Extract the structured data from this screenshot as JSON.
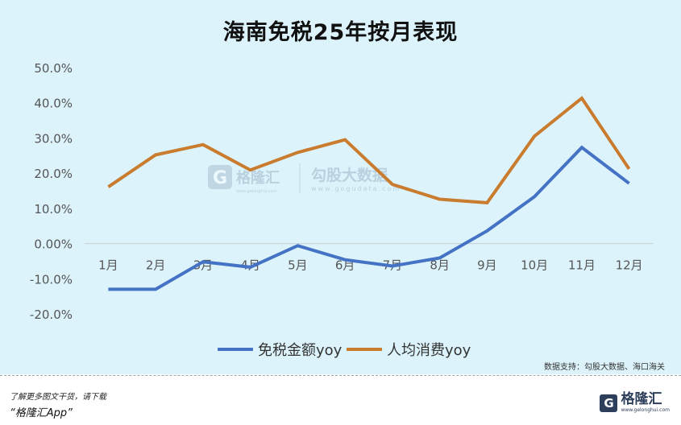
{
  "title": "海南免税25年按月表现",
  "source_note": "数据支持：勾股大数据、海口海关",
  "promo": {
    "line1": "了解更多图文干货，请下载",
    "line2": "“格隆汇App”"
  },
  "logo": {
    "mark": "G",
    "name": "格隆汇",
    "url": "www.gelonghui.com"
  },
  "watermark": {
    "mark": "G",
    "brand": "格隆汇",
    "brand_url": "www.gelonghui.com",
    "text": "勾股大数据",
    "url": "www.gogudata.com"
  },
  "chart_data": {
    "type": "line",
    "categories": [
      "1月",
      "2月",
      "3月",
      "4月",
      "5月",
      "6月",
      "7月",
      "8月",
      "9月",
      "10月",
      "11月",
      "12月"
    ],
    "series": [
      {
        "name": "免税金额yoy",
        "color": "#4472c4",
        "values": [
          -13.0,
          -13.0,
          -5.2,
          -6.7,
          -0.6,
          -4.6,
          -6.4,
          -4.1,
          3.6,
          13.3,
          27.3,
          17.1
        ]
      },
      {
        "name": "人均消费yoy",
        "color": "#c97b2e",
        "values": [
          16.1,
          25.2,
          28.1,
          20.9,
          25.9,
          29.5,
          16.8,
          12.6,
          11.6,
          30.5,
          41.3,
          21.2
        ]
      }
    ],
    "ylim": [
      -20,
      50
    ],
    "yticks": [
      "-20.0%",
      "-10.0%",
      "0.00%",
      "10.0%",
      "20.0%",
      "30.0%",
      "40.0%",
      "50.0%"
    ],
    "ytick_values": [
      -20,
      -10,
      0,
      10,
      20,
      30,
      40,
      50
    ],
    "grid": false,
    "legend_position": "bottom"
  }
}
